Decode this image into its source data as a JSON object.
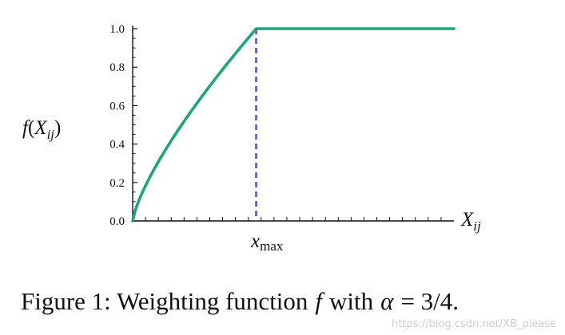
{
  "chart_data": {
    "type": "line",
    "series": [
      {
        "values": []
      }
    ],
    "x": {
      "label": "X_ij",
      "marker_label": "x_max",
      "x_max": 1.0,
      "range": [
        0,
        2.6
      ],
      "minor_tick_count": 24
    },
    "y": {
      "label": "f(X_ij)",
      "ticks": [
        "0.0",
        "0.2",
        "0.4",
        "0.6",
        "0.8",
        "1.0"
      ],
      "ylim": [
        0,
        1.0
      ]
    },
    "alpha": 0.75,
    "function": "f(x) = (x / x_max)^alpha for x < x_max, 1 otherwise",
    "colors": {
      "curve": "#1fa37a",
      "marker_line": "#7b62b8",
      "axis": "#111111"
    }
  },
  "caption": {
    "prefix": "Figure 1: Weighting function",
    "var": "f",
    "middle": "with",
    "greek": "α",
    "suffix": "= 3/4."
  },
  "watermark": "https://blog.csdn.net/XB_please"
}
